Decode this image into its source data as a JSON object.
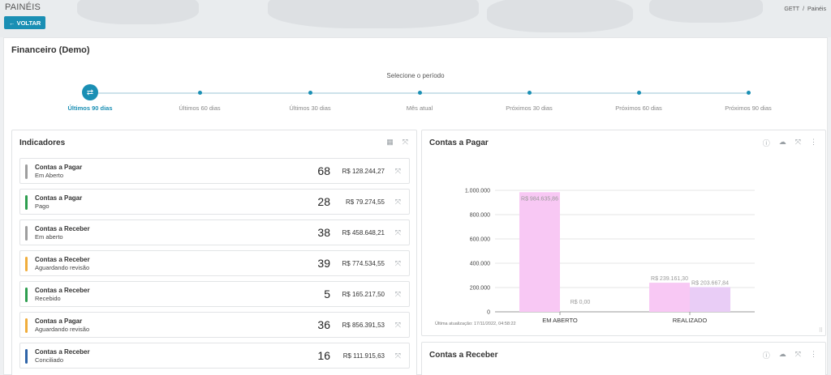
{
  "header": {
    "page_title": "PAINÉIS",
    "back_label": "← VOLTAR",
    "breadcrumb": [
      "GETT",
      "/",
      "Painéis"
    ]
  },
  "dashboard": {
    "title": "Financeiro (Demo)",
    "period_prompt": "Selecione o período",
    "periods": [
      "Últimos 90 dias",
      "Últimos 60 dias",
      "Últimos 30 dias",
      "Mês atual",
      "Próximos 30 dias",
      "Próximos 60 dias",
      "Próximos 90 dias"
    ],
    "selected_period": "Últimos 90 dias"
  },
  "indicators": {
    "title": "Indicadores",
    "items": [
      {
        "title": "Contas a Pagar",
        "subtitle": "Em Aberto",
        "count": "68",
        "value": "R$ 128.244,27",
        "color": "#9e9e9e"
      },
      {
        "title": "Contas a Pagar",
        "subtitle": "Pago",
        "count": "28",
        "value": "R$ 79.274,55",
        "color": "#2e9e4f"
      },
      {
        "title": "Contas a Receber",
        "subtitle": "Em aberto",
        "count": "38",
        "value": "R$ 458.648,21",
        "color": "#9e9e9e"
      },
      {
        "title": "Contas a Receber",
        "subtitle": "Aguardando revisão",
        "count": "39",
        "value": "R$ 774.534,55",
        "color": "#f0ad3c"
      },
      {
        "title": "Contas a Receber",
        "subtitle": "Recebido",
        "count": "5",
        "value": "R$ 165.217,50",
        "color": "#2e9e4f"
      },
      {
        "title": "Contas a Pagar",
        "subtitle": "Aguardando revisão",
        "count": "36",
        "value": "R$ 856.391,53",
        "color": "#f0ad3c"
      },
      {
        "title": "Contas a Receber",
        "subtitle": "Conciliado",
        "count": "16",
        "value": "R$ 111.915,63",
        "color": "#2f64a8"
      }
    ]
  },
  "contas_pagar": {
    "title": "Contas a Pagar",
    "footer": "Última atualização: 17/11/2022, 04:58:22"
  },
  "contas_receber": {
    "title": "Contas a Receber"
  },
  "chart_data": {
    "type": "bar",
    "categories": [
      "EM ABERTO",
      "REALIZADO"
    ],
    "series": [
      {
        "values": [
          984635.86,
          239161.3
        ],
        "labels": [
          "R$ 984.635,86",
          "R$ 239.161,30"
        ],
        "color": "#f8c8f4"
      },
      {
        "values": [
          0,
          203667.84
        ],
        "labels": [
          "R$ 0,00",
          "R$ 203.667,84"
        ],
        "color": "#e9cdf6"
      }
    ],
    "yticks": [
      0,
      200000,
      400000,
      600000,
      800000,
      1000000
    ],
    "ytick_labels": [
      "0",
      "200.000",
      "400.000",
      "600.000",
      "800.000",
      "1.000.000"
    ],
    "ylim": [
      0,
      1000000
    ],
    "title": "",
    "xlabel": "",
    "ylabel": ""
  }
}
